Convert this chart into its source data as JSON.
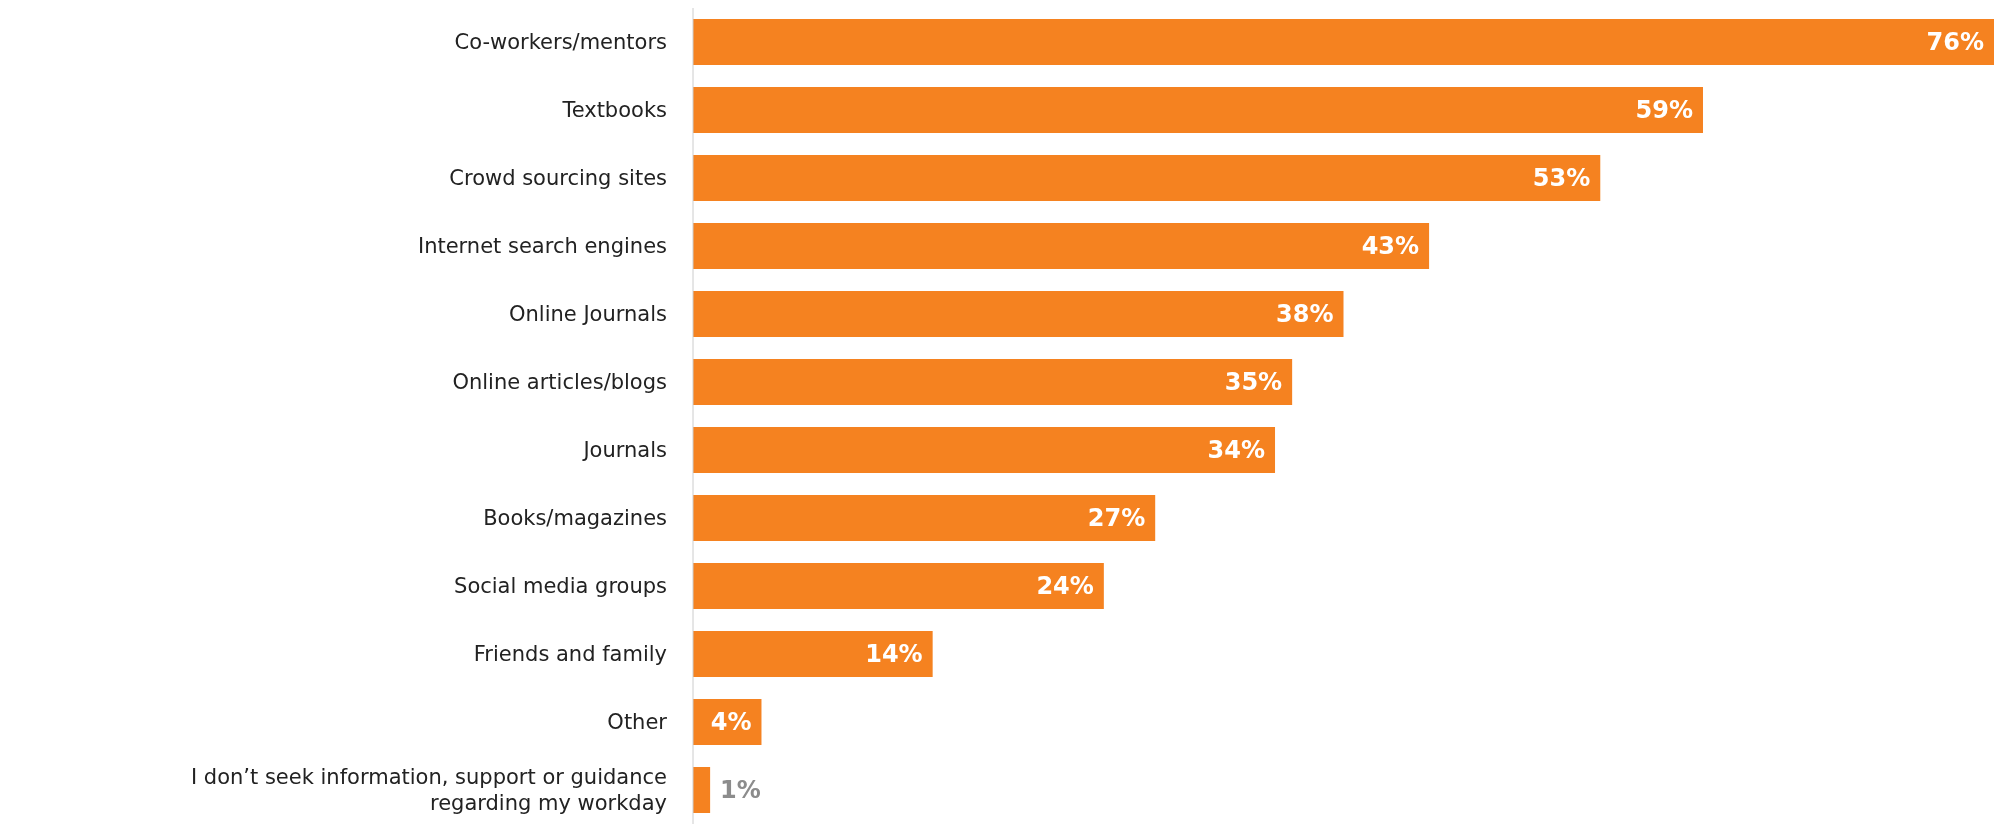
{
  "chart_data": {
    "type": "bar",
    "orientation": "horizontal",
    "categories": [
      "Co-workers/mentors",
      "Textbooks",
      "Crowd sourcing sites",
      "Internet search engines",
      "Online Journals",
      "Online articles/blogs",
      "Journals",
      "Books/magazines",
      "Social media groups",
      "Friends and family",
      "Other",
      "I don’t seek information, support or guidance regarding my workday"
    ],
    "values": [
      76,
      59,
      53,
      43,
      38,
      35,
      34,
      27,
      24,
      14,
      4,
      1
    ],
    "value_labels": [
      "76%",
      "59%",
      "53%",
      "43%",
      "38%",
      "35%",
      "34%",
      "27%",
      "24%",
      "14%",
      "4%",
      "1%"
    ],
    "color": "#f58220"
  }
}
